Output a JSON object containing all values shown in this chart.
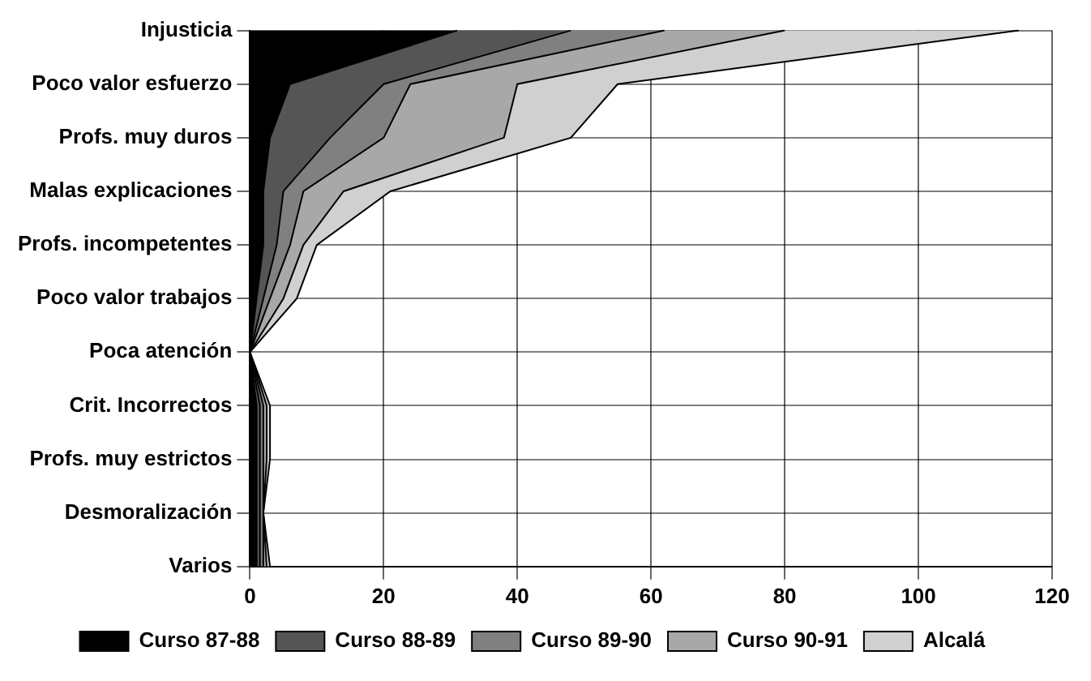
{
  "chart_data": {
    "type": "area",
    "orientation": "horizontal",
    "stacked": true,
    "categories": [
      "Injusticia",
      "Poco valor esfuerzo",
      "Profs. muy duros",
      "Malas explicaciones",
      "Profs. incompetentes",
      "Poco valor trabajos",
      "Poca atención",
      "Crit. Incorrectos",
      "Profs. muy estrictos",
      "Desmoralización",
      "Varios"
    ],
    "series": [
      {
        "name": "Curso 87-88",
        "color": "#000000",
        "values": [
          31,
          6,
          3,
          2,
          2,
          1,
          0,
          1,
          1,
          1,
          1
        ]
      },
      {
        "name": "Curso 88-89",
        "color": "#555555",
        "values": [
          17,
          14,
          9,
          3,
          2,
          1,
          0,
          0.5,
          0.5,
          0.5,
          0.5
        ]
      },
      {
        "name": "Curso 89-90",
        "color": "#808080",
        "values": [
          14,
          4,
          8,
          3,
          2,
          1,
          0,
          0.5,
          0.5,
          0.5,
          0.5
        ]
      },
      {
        "name": "Curso 90-91",
        "color": "#a8a8a8",
        "values": [
          18,
          16,
          18,
          6,
          2,
          2,
          0,
          0.5,
          0.5,
          0,
          0.5
        ]
      },
      {
        "name": "Alcalá",
        "color": "#d0d0d0",
        "values": [
          35,
          15,
          10,
          7,
          2,
          2,
          0,
          0.5,
          0.5,
          0,
          0.5
        ]
      }
    ],
    "xlim": [
      0,
      120
    ],
    "xticks": [
      0,
      20,
      40,
      60,
      80,
      100,
      120
    ],
    "grid": true,
    "legend": "bottom"
  }
}
